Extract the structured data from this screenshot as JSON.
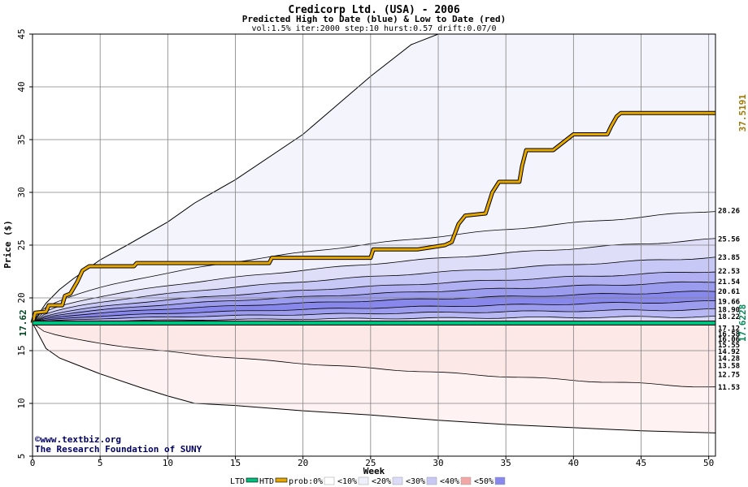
{
  "chart_data": {
    "type": "area",
    "title": "Credicorp Ltd. (USA) - 2006",
    "subtitle": "Predicted High to Date (blue) &  Low to Date (red)",
    "params": "vol:1.5% iter:2000 step:10 hurst:0.57 drift:0.07/0",
    "xlabel": "Week",
    "ylabel": "Price ($)",
    "xlim": [
      0,
      50.5
    ],
    "ylim": [
      5,
      45
    ],
    "xticks": [
      0,
      5,
      10,
      15,
      20,
      25,
      30,
      35,
      40,
      45,
      50
    ],
    "yticks": [
      5,
      10,
      15,
      20,
      25,
      30,
      35,
      40,
      45
    ],
    "grid": true,
    "start_price": 17.62,
    "start_label": "17.62",
    "last_price": 37.5191,
    "last_label": "37.5191",
    "ltd_last": 17.6228,
    "ltd_last_label": "17.6228",
    "upper_bands": [
      {
        "end": 28.26,
        "label": "28.26",
        "color": "#f0f0fc"
      },
      {
        "end": 25.56,
        "label": "25.56",
        "color": "#dedef9"
      },
      {
        "end": 23.85,
        "label": "23.85",
        "color": "#c8c8f6"
      },
      {
        "end": 22.53,
        "label": "22.53",
        "color": "#b0b0f2"
      },
      {
        "end": 21.54,
        "label": "21.54",
        "color": "#9c9cef"
      },
      {
        "end": 20.61,
        "label": "20.61",
        "color": "#8888ec"
      },
      {
        "end": 19.66,
        "label": "19.66",
        "color": "#9c9cef"
      },
      {
        "end": 18.9,
        "label": "18.90",
        "color": "#b8b8f4"
      },
      {
        "end": 18.22,
        "label": "18.22",
        "color": "#d8d8f8"
      }
    ],
    "lower_bands": [
      {
        "end": 17.12,
        "label": "17.12",
        "color": "#fbe2e2"
      },
      {
        "end": 16.58,
        "label": "16.58",
        "color": "#f7caca"
      },
      {
        "end": 16.06,
        "label": "16.06",
        "color": "#f4b8b8"
      },
      {
        "end": 15.55,
        "label": "15.55",
        "color": "#f2a6a6"
      },
      {
        "end": 14.92,
        "label": "14.92",
        "color": "#f08e8e"
      },
      {
        "end": 14.28,
        "label": "14.28",
        "color": "#f2a6a6"
      },
      {
        "end": 13.58,
        "label": "13.58",
        "color": "#f7c4c4"
      },
      {
        "end": 12.75,
        "label": "12.75",
        "color": "#fad8d8"
      },
      {
        "end": 11.53,
        "label": "11.53",
        "color": "#fde8e8"
      }
    ],
    "envelope": {
      "upper": [
        [
          0,
          17.62
        ],
        [
          1,
          19.5
        ],
        [
          2,
          20.8
        ],
        [
          3,
          21.8
        ],
        [
          4,
          22.7
        ],
        [
          5,
          23.6
        ],
        [
          7,
          25.0
        ],
        [
          10,
          27.2
        ],
        [
          12,
          29.0
        ],
        [
          15,
          31.2
        ],
        [
          20,
          35.5
        ],
        [
          25,
          41
        ],
        [
          28,
          44
        ],
        [
          30,
          45
        ]
      ],
      "lower": [
        [
          0,
          17.62
        ],
        [
          1,
          15.2
        ],
        [
          2,
          14.3
        ],
        [
          3,
          13.8
        ],
        [
          5,
          12.8
        ],
        [
          8,
          11.5
        ],
        [
          10,
          10.7
        ],
        [
          12,
          10.0
        ],
        [
          15,
          9.8
        ],
        [
          20,
          9.3
        ],
        [
          25,
          8.9
        ],
        [
          30,
          8.4
        ],
        [
          35,
          8.0
        ],
        [
          40,
          7.7
        ],
        [
          45,
          7.4
        ],
        [
          50.5,
          7.2
        ]
      ]
    },
    "series": [
      {
        "name": "HTD",
        "color": "#e6a800",
        "values": [
          [
            0,
            17.62
          ],
          [
            0.2,
            18.6
          ],
          [
            1,
            18.7
          ],
          [
            1.2,
            19.3
          ],
          [
            2.2,
            19.3
          ],
          [
            2.4,
            20.2
          ],
          [
            2.8,
            20.4
          ],
          [
            3.3,
            21.5
          ],
          [
            3.7,
            22.6
          ],
          [
            4.2,
            23.0
          ],
          [
            7.5,
            23.0
          ],
          [
            7.7,
            23.3
          ],
          [
            15,
            23.3
          ],
          [
            17.5,
            23.3
          ],
          [
            17.7,
            23.8
          ],
          [
            25,
            23.8
          ],
          [
            25.2,
            24.6
          ],
          [
            28.5,
            24.6
          ],
          [
            29.5,
            24.8
          ],
          [
            30.5,
            25.0
          ],
          [
            31,
            25.3
          ],
          [
            31.5,
            27.0
          ],
          [
            32,
            27.8
          ],
          [
            33.5,
            28.0
          ],
          [
            34,
            30.0
          ],
          [
            34.5,
            31.0
          ],
          [
            36,
            31.0
          ],
          [
            36.2,
            32.5
          ],
          [
            36.5,
            34.0
          ],
          [
            38.5,
            34.0
          ],
          [
            39,
            34.5
          ],
          [
            39.5,
            35.0
          ],
          [
            40,
            35.5
          ],
          [
            42.5,
            35.5
          ],
          [
            42.8,
            36.3
          ],
          [
            43.2,
            37.2
          ],
          [
            43.5,
            37.52
          ],
          [
            50.5,
            37.52
          ]
        ]
      },
      {
        "name": "LTD",
        "color": "#00c080",
        "values": [
          [
            0,
            17.62
          ],
          [
            50.5,
            17.62
          ]
        ]
      }
    ],
    "credit": [
      "©www.textbiz.org",
      "The Research Foundation of SUNY"
    ],
    "legend": {
      "ltd": "LTD",
      "htd": "HTD",
      "prob_prefix": "prob:",
      "items": [
        {
          "label": "0%",
          "color": "#ffffff"
        },
        {
          "label": "<10%",
          "color": "#f0f0fc"
        },
        {
          "label": "<20%",
          "color": "#dcdcf8"
        },
        {
          "label": "<30%",
          "color": "#c8c8f4"
        },
        {
          "label": "<40%",
          "color": "#f2a6a6"
        },
        {
          "label": "<50%",
          "color": "#8888ec"
        }
      ]
    }
  }
}
